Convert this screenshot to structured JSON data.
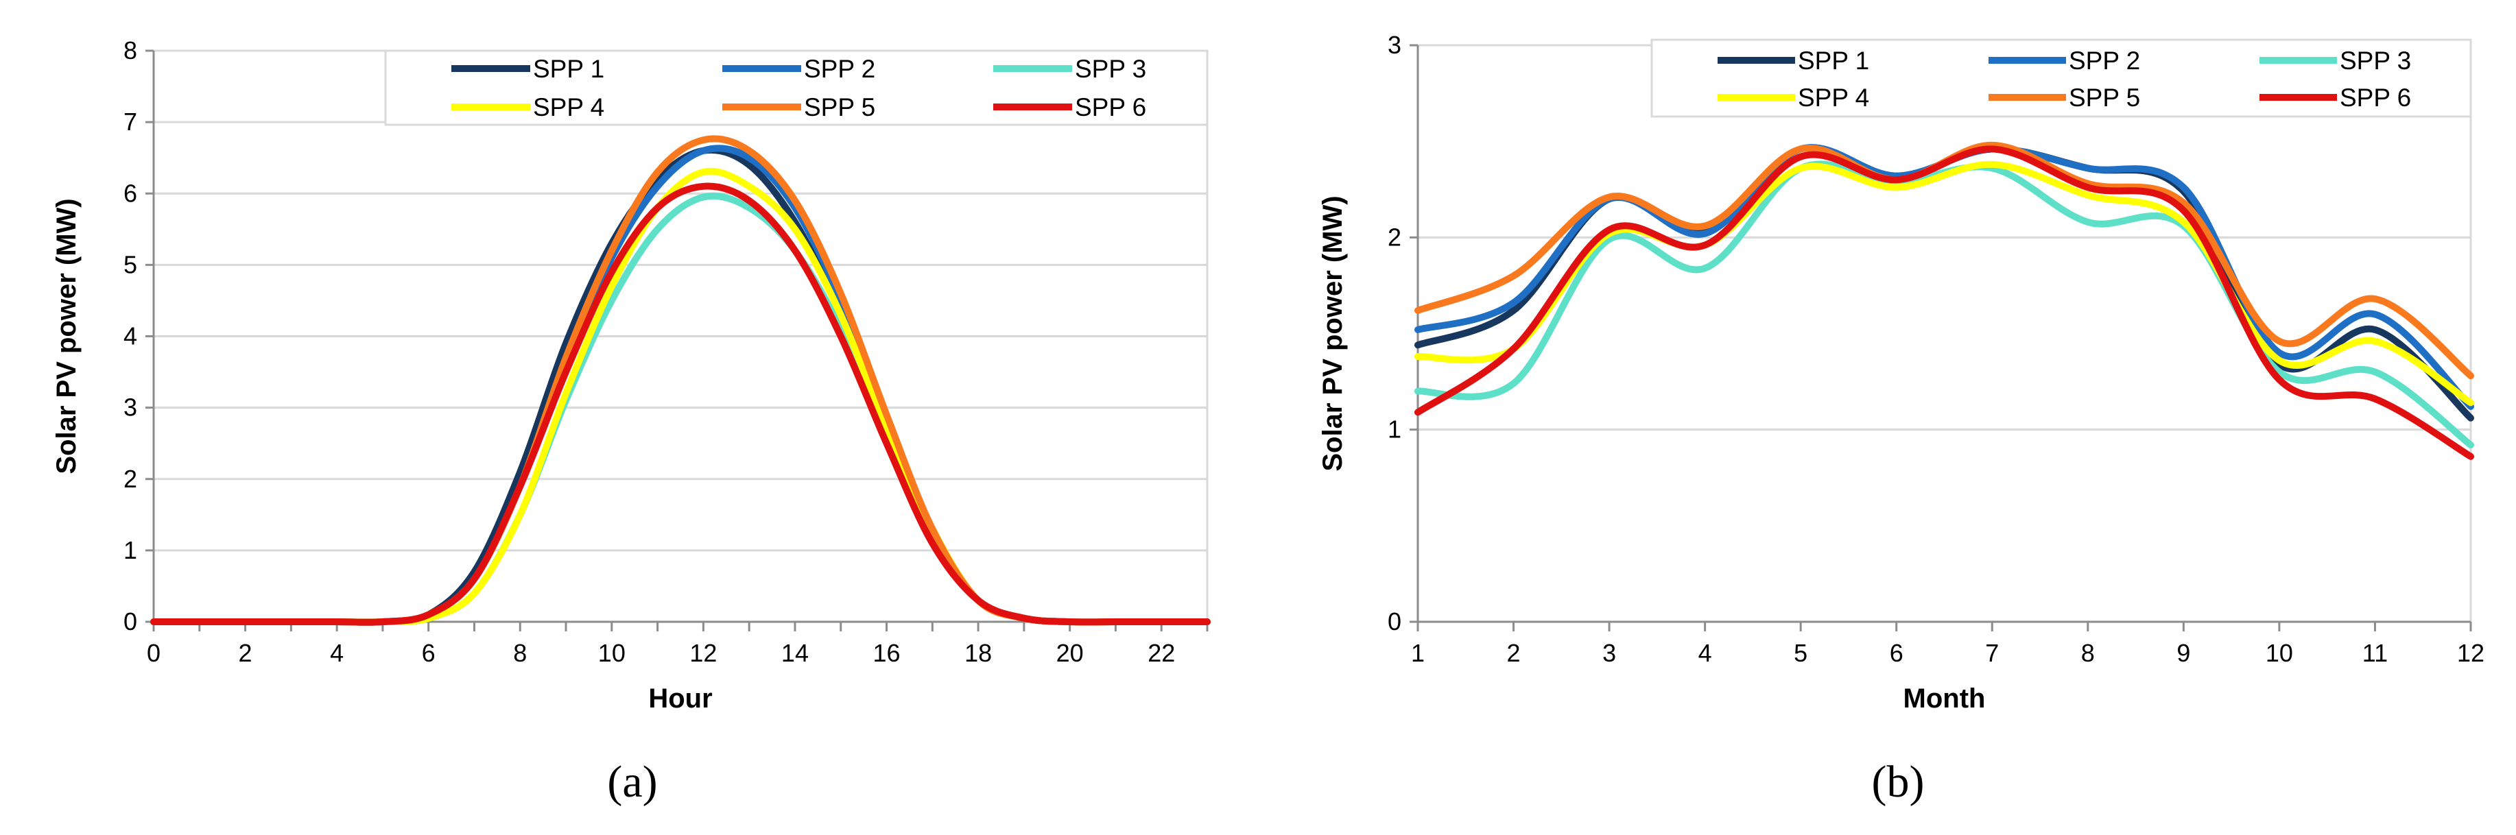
{
  "chart_data": [
    {
      "type": "line",
      "panel_label": "(a)",
      "xlabel": "Hour",
      "ylabel": "Solar PV power (MW)",
      "xlim": [
        0,
        23
      ],
      "ylim": [
        0,
        8
      ],
      "xticks": [
        0,
        2,
        4,
        6,
        8,
        10,
        12,
        14,
        16,
        18,
        20,
        22
      ],
      "yticks": [
        0,
        1,
        2,
        3,
        4,
        5,
        6,
        7,
        8
      ],
      "grid": "horizontal",
      "legend_position": "top-right",
      "x": [
        0,
        1,
        2,
        3,
        4,
        5,
        6,
        7,
        8,
        9,
        10,
        11,
        12,
        13,
        14,
        15,
        16,
        17,
        18,
        19,
        20,
        21,
        22,
        23
      ],
      "series": [
        {
          "name": "SPP 1",
          "color": "#17375E",
          "values": [
            0,
            0,
            0,
            0,
            0,
            0,
            0.1,
            0.7,
            2.1,
            3.9,
            5.3,
            6.2,
            6.6,
            6.4,
            5.6,
            4.3,
            2.7,
            1.2,
            0.3,
            0.05,
            0,
            0,
            0,
            0
          ]
        },
        {
          "name": "SPP 2",
          "color": "#1F6FC5",
          "values": [
            0,
            0,
            0,
            0,
            0,
            0,
            0.1,
            0.6,
            1.9,
            3.6,
            5.1,
            6.1,
            6.6,
            6.5,
            5.8,
            4.5,
            2.8,
            1.3,
            0.3,
            0.05,
            0,
            0,
            0,
            0
          ]
        },
        {
          "name": "SPP 3",
          "color": "#5EE0C8",
          "values": [
            0,
            0,
            0,
            0,
            0,
            0,
            0.05,
            0.4,
            1.5,
            3.1,
            4.5,
            5.5,
            5.95,
            5.8,
            5.2,
            4.1,
            2.6,
            1.2,
            0.3,
            0.05,
            0,
            0,
            0,
            0
          ]
        },
        {
          "name": "SPP 4",
          "color": "#FFFF00",
          "values": [
            0,
            0,
            0,
            0,
            0,
            0,
            0.05,
            0.4,
            1.5,
            3.2,
            4.7,
            5.8,
            6.3,
            6.1,
            5.5,
            4.3,
            2.7,
            1.3,
            0.3,
            0.05,
            0,
            0,
            0,
            0
          ]
        },
        {
          "name": "SPP 5",
          "color": "#F97A1E",
          "values": [
            0,
            0,
            0,
            0,
            0,
            0,
            0.1,
            0.6,
            1.9,
            3.7,
            5.2,
            6.3,
            6.75,
            6.6,
            5.9,
            4.6,
            2.9,
            1.3,
            0.3,
            0.05,
            0,
            0,
            0,
            0
          ]
        },
        {
          "name": "SPP 6",
          "color": "#E01010",
          "values": [
            0,
            0,
            0,
            0,
            0,
            0,
            0.1,
            0.6,
            1.9,
            3.5,
            4.9,
            5.8,
            6.1,
            5.9,
            5.2,
            4.0,
            2.5,
            1.1,
            0.3,
            0.05,
            0,
            0,
            0,
            0
          ]
        }
      ]
    },
    {
      "type": "line",
      "panel_label": "(b)",
      "xlabel": "Month",
      "ylabel": "Solar PV power (MW)",
      "xlim": [
        1,
        12
      ],
      "ylim": [
        0,
        3
      ],
      "xticks": [
        1,
        2,
        3,
        4,
        5,
        6,
        7,
        8,
        9,
        10,
        11,
        12
      ],
      "yticks": [
        0,
        1,
        2,
        3
      ],
      "grid": "horizontal",
      "legend_position": "top-right",
      "x": [
        1,
        2,
        3,
        4,
        5,
        6,
        7,
        8,
        9,
        10,
        11,
        12
      ],
      "series": [
        {
          "name": "SPP 1",
          "color": "#17375E",
          "values": [
            1.44,
            1.62,
            2.2,
            2.04,
            2.46,
            2.32,
            2.46,
            2.36,
            2.24,
            1.34,
            1.52,
            1.06
          ]
        },
        {
          "name": "SPP 2",
          "color": "#1F6FC5",
          "values": [
            1.52,
            1.66,
            2.2,
            2.02,
            2.46,
            2.32,
            2.46,
            2.36,
            2.26,
            1.4,
            1.6,
            1.12
          ]
        },
        {
          "name": "SPP 3",
          "color": "#5EE0C8",
          "values": [
            1.2,
            1.24,
            1.99,
            1.84,
            2.36,
            2.29,
            2.36,
            2.08,
            2.06,
            1.3,
            1.3,
            0.92
          ]
        },
        {
          "name": "SPP 4",
          "color": "#FFFF00",
          "values": [
            1.38,
            1.42,
            2.02,
            1.96,
            2.36,
            2.26,
            2.38,
            2.22,
            2.08,
            1.36,
            1.46,
            1.14
          ]
        },
        {
          "name": "SPP 5",
          "color": "#F97A1E",
          "values": [
            1.62,
            1.8,
            2.21,
            2.06,
            2.46,
            2.3,
            2.48,
            2.28,
            2.18,
            1.46,
            1.68,
            1.28
          ]
        },
        {
          "name": "SPP 6",
          "color": "#E01010",
          "values": [
            1.09,
            1.42,
            2.04,
            1.96,
            2.42,
            2.3,
            2.46,
            2.26,
            2.14,
            1.26,
            1.16,
            0.86
          ]
        }
      ]
    }
  ]
}
